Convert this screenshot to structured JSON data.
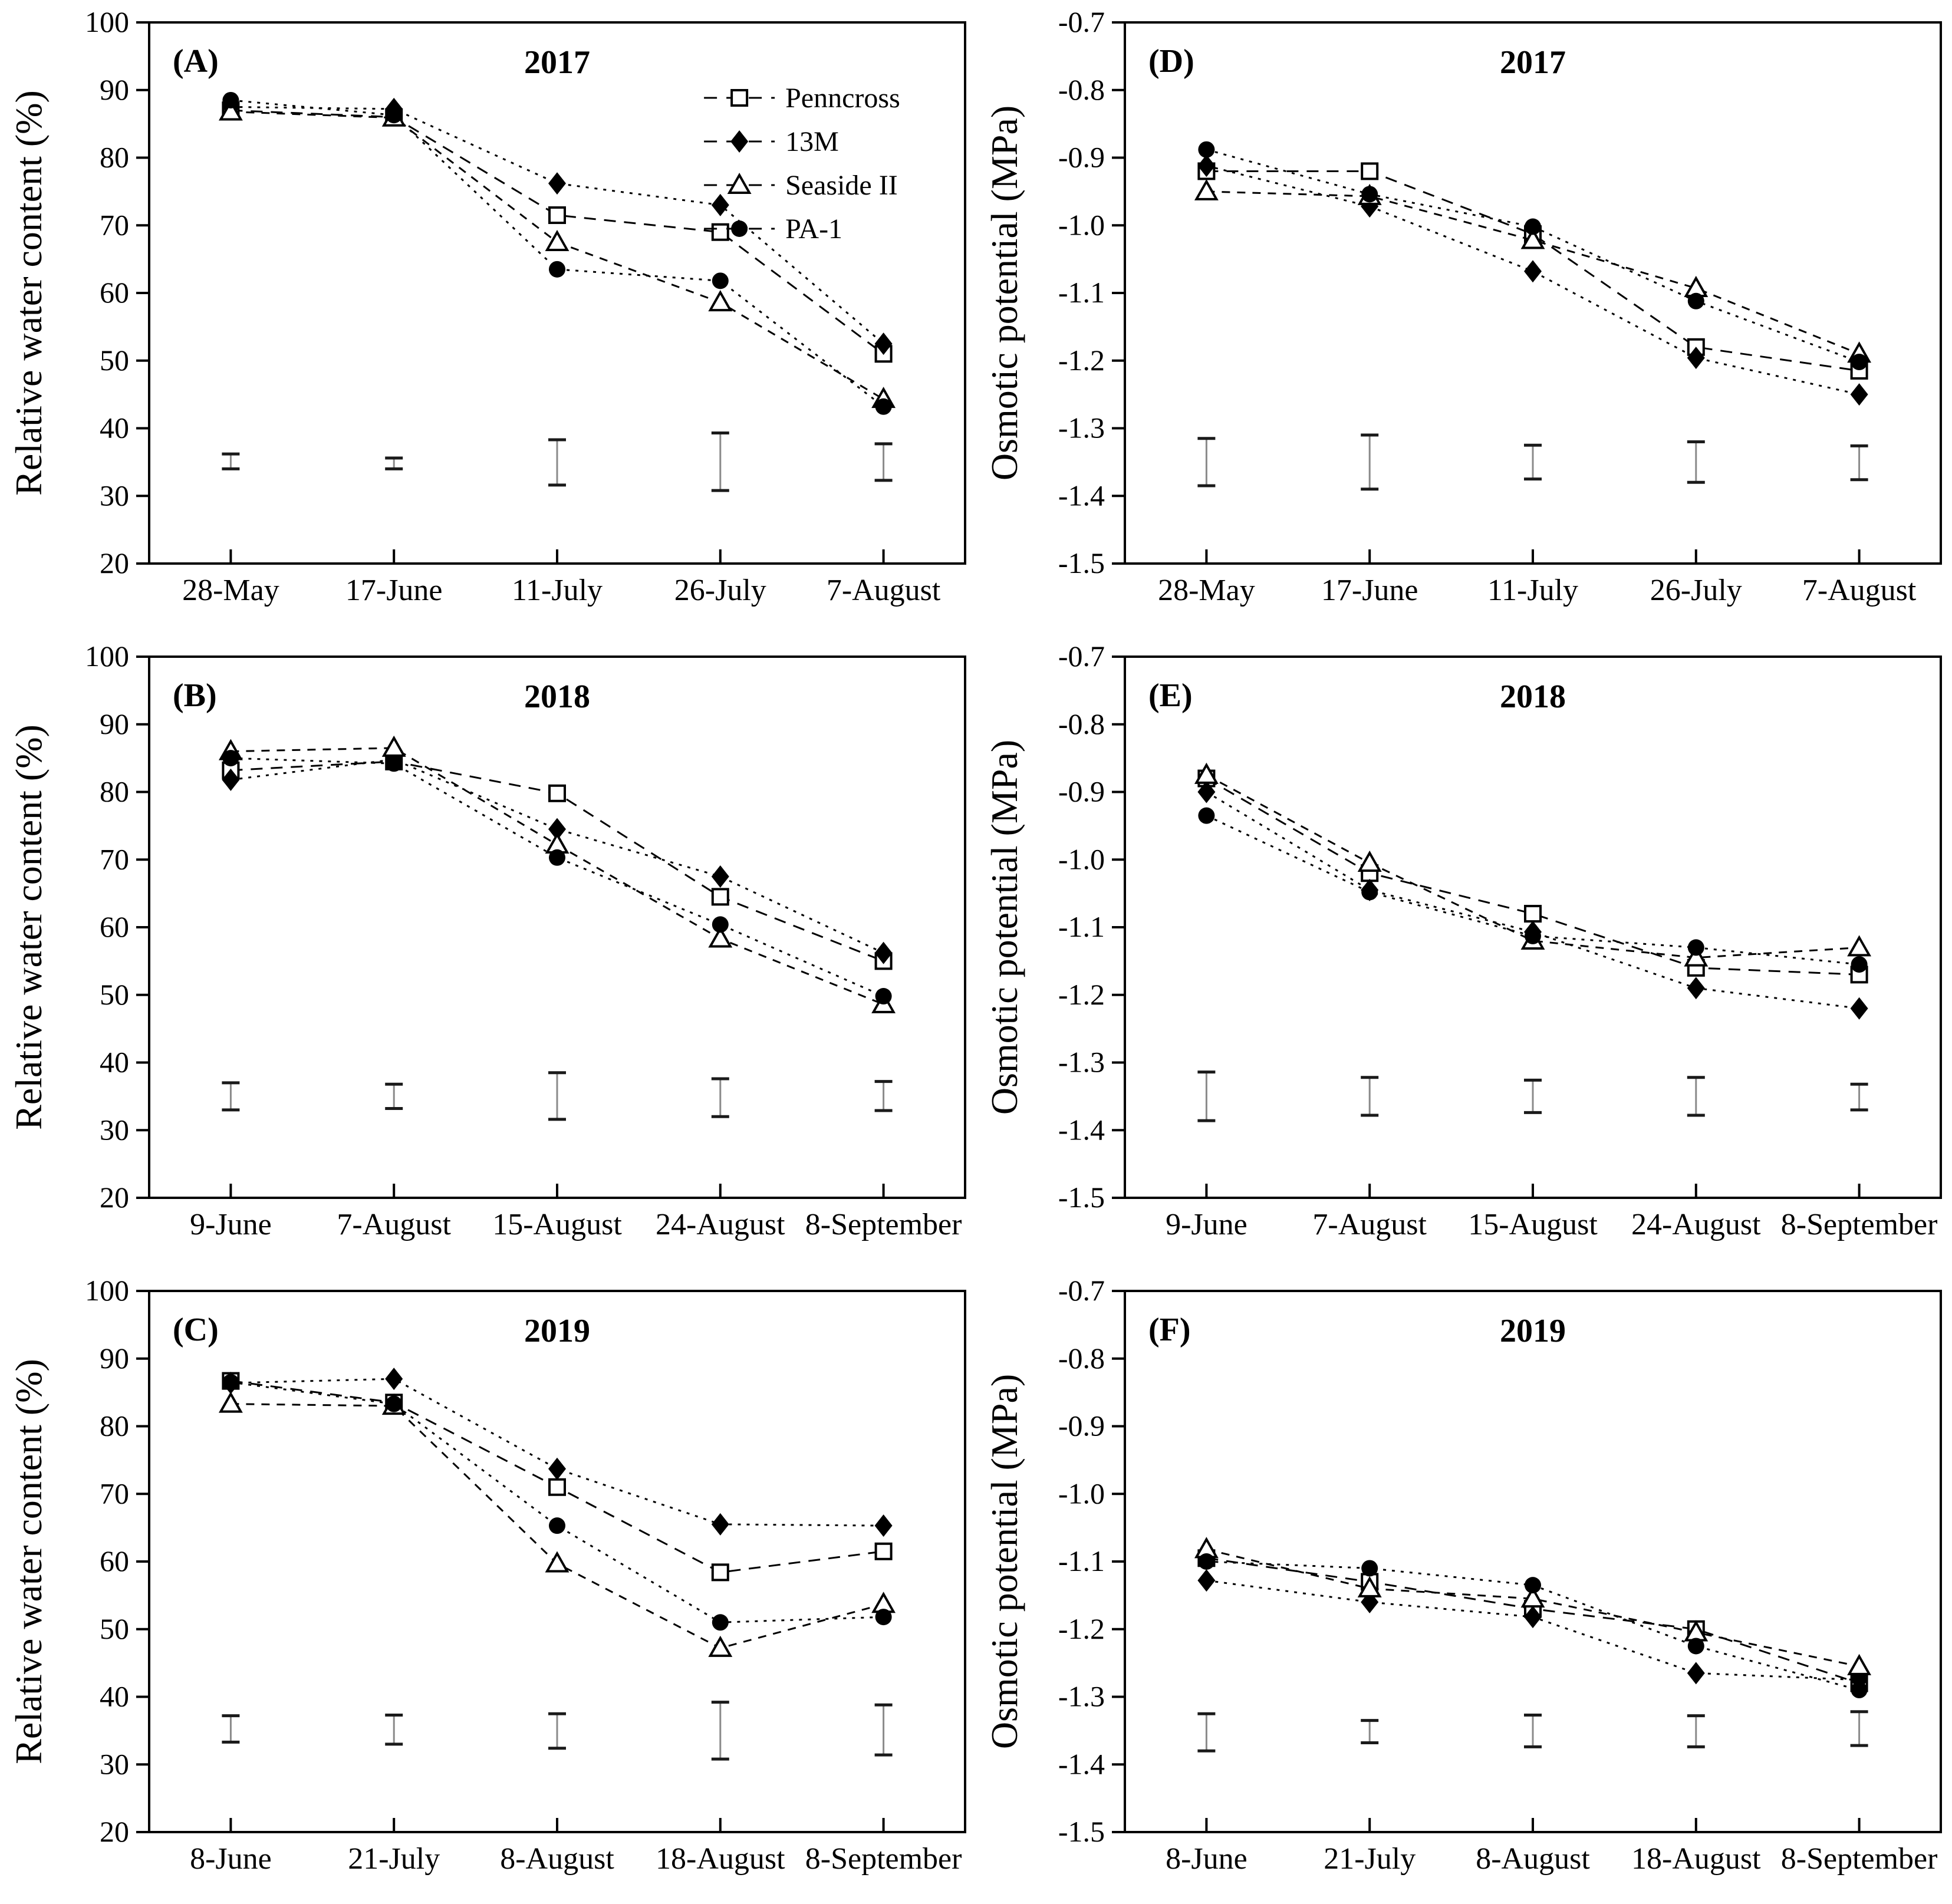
{
  "figure": {
    "background": "#ffffff",
    "foreground": "#000000",
    "error_bar_line_color": "#8a8a8a",
    "error_bar_cap_color": "#1a1a1a"
  },
  "legend": {
    "position": "top-right-of-panel-A",
    "items": [
      {
        "label": "Penncross",
        "marker": "square-open"
      },
      {
        "label": "13M",
        "marker": "diamond-filled"
      },
      {
        "label": "Seaside II",
        "marker": "triangle-open"
      },
      {
        "label": "PA-1",
        "marker": "circle-filled"
      }
    ]
  },
  "chart_data": [
    {
      "id": "A",
      "type": "line",
      "panel_label": "(A)",
      "title": "2017",
      "ylabel": "Relative water content (%)",
      "categories": [
        "28-May",
        "17-June",
        "11-July",
        "26-July",
        "7-August"
      ],
      "ylim": [
        20,
        100
      ],
      "yticks": [
        {
          "v": 100,
          "label": "100"
        },
        {
          "v": 90,
          "label": "90"
        },
        {
          "v": 80,
          "label": "80"
        },
        {
          "v": 70,
          "label": "70"
        },
        {
          "v": 60,
          "label": "60"
        },
        {
          "v": 50,
          "label": "50"
        },
        {
          "v": 40,
          "label": "40"
        },
        {
          "v": 30,
          "label": "30"
        },
        {
          "v": 20,
          "label": "20"
        }
      ],
      "show_legend": true,
      "series": [
        {
          "name": "Penncross",
          "marker": "square-open",
          "values": [
            87.0,
            86.0,
            71.5,
            69.0,
            51.0
          ]
        },
        {
          "name": "13M",
          "marker": "diamond-filled",
          "values": [
            87.5,
            87.2,
            76.2,
            73.0,
            52.5
          ]
        },
        {
          "name": "Seaside II",
          "marker": "triangle-open",
          "values": [
            86.8,
            85.9,
            67.5,
            58.6,
            44.3
          ]
        },
        {
          "name": "PA-1",
          "marker": "circle-filled",
          "values": [
            88.5,
            86.3,
            63.5,
            61.8,
            43.2
          ]
        }
      ],
      "error_bars": [
        [
          34.0,
          36.2
        ],
        [
          34.0,
          35.6
        ],
        [
          31.6,
          38.3
        ],
        [
          30.8,
          39.3
        ],
        [
          32.3,
          37.7
        ]
      ]
    },
    {
      "id": "D",
      "type": "line",
      "panel_label": "(D)",
      "title": "2017",
      "ylabel": "Osmotic potential (MPa)",
      "categories": [
        "28-May",
        "17-June",
        "11-July",
        "26-July",
        "7-August"
      ],
      "ylim": [
        -1.5,
        -0.7
      ],
      "yticks": [
        {
          "v": -0.7,
          "label": "-0.7"
        },
        {
          "v": -0.8,
          "label": "-0.8"
        },
        {
          "v": -0.9,
          "label": "-0.9"
        },
        {
          "v": -1.0,
          "label": "-1.0"
        },
        {
          "v": -1.1,
          "label": "-1.1"
        },
        {
          "v": -1.2,
          "label": "-1.2"
        },
        {
          "v": -1.3,
          "label": "-1.3"
        },
        {
          "v": -1.4,
          "label": "-1.4"
        },
        {
          "v": -1.5,
          "label": "-1.5"
        }
      ],
      "show_legend": false,
      "series": [
        {
          "name": "Penncross",
          "marker": "square-open",
          "values": [
            -0.92,
            -0.92,
            -1.013,
            -1.18,
            -1.215
          ]
        },
        {
          "name": "13M",
          "marker": "diamond-filled",
          "values": [
            -0.912,
            -0.972,
            -1.068,
            -1.196,
            -1.25
          ]
        },
        {
          "name": "Seaside II",
          "marker": "triangle-open",
          "values": [
            -0.95,
            -0.957,
            -1.022,
            -1.093,
            -1.19
          ]
        },
        {
          "name": "PA-1",
          "marker": "circle-filled",
          "values": [
            -0.888,
            -0.954,
            -1.002,
            -1.112,
            -1.202
          ]
        }
      ],
      "error_bars": [
        [
          -1.385,
          -1.315
        ],
        [
          -1.39,
          -1.31
        ],
        [
          -1.375,
          -1.325
        ],
        [
          -1.38,
          -1.32
        ],
        [
          -1.376,
          -1.326
        ]
      ]
    },
    {
      "id": "B",
      "type": "line",
      "panel_label": "(B)",
      "title": "2018",
      "ylabel": "Relative water content (%)",
      "categories": [
        "9-June",
        "7-August",
        "15-August",
        "24-August",
        "8-September"
      ],
      "ylim": [
        20,
        100
      ],
      "yticks": [
        {
          "v": 100,
          "label": "100"
        },
        {
          "v": 90,
          "label": "90"
        },
        {
          "v": 80,
          "label": "80"
        },
        {
          "v": 70,
          "label": "70"
        },
        {
          "v": 60,
          "label": "60"
        },
        {
          "v": 50,
          "label": "50"
        },
        {
          "v": 40,
          "label": "40"
        },
        {
          "v": 30,
          "label": "30"
        },
        {
          "v": 20,
          "label": "20"
        }
      ],
      "show_legend": false,
      "series": [
        {
          "name": "Penncross",
          "marker": "square-open",
          "values": [
            83.2,
            84.5,
            79.8,
            64.5,
            55.0
          ]
        },
        {
          "name": "13M",
          "marker": "diamond-filled",
          "values": [
            81.8,
            84.8,
            74.5,
            67.5,
            56.2
          ]
        },
        {
          "name": "Seaside II",
          "marker": "triangle-open",
          "values": [
            86.0,
            86.5,
            72.2,
            58.3,
            48.6
          ]
        },
        {
          "name": "PA-1",
          "marker": "circle-filled",
          "values": [
            85.0,
            84.2,
            70.3,
            60.4,
            49.8
          ]
        }
      ],
      "error_bars": [
        [
          33.0,
          37.0
        ],
        [
          33.2,
          36.8
        ],
        [
          31.6,
          38.5
        ],
        [
          32.0,
          37.6
        ],
        [
          32.9,
          37.2
        ]
      ]
    },
    {
      "id": "E",
      "type": "line",
      "panel_label": "(E)",
      "title": "2018",
      "ylabel": "Osmotic potential (MPa)",
      "categories": [
        "9-June",
        "7-August",
        "15-August",
        "24-August",
        "8-September"
      ],
      "ylim": [
        -1.5,
        -0.7
      ],
      "yticks": [
        {
          "v": -0.7,
          "label": "-0.7"
        },
        {
          "v": -0.8,
          "label": "-0.8"
        },
        {
          "v": -0.9,
          "label": "-0.9"
        },
        {
          "v": -1.0,
          "label": "-1.0"
        },
        {
          "v": -1.1,
          "label": "-1.1"
        },
        {
          "v": -1.2,
          "label": "-1.2"
        },
        {
          "v": -1.3,
          "label": "-1.3"
        },
        {
          "v": -1.4,
          "label": "-1.4"
        },
        {
          "v": -1.5,
          "label": "-1.5"
        }
      ],
      "show_legend": false,
      "series": [
        {
          "name": "Penncross",
          "marker": "square-open",
          "values": [
            -0.88,
            -1.02,
            -1.08,
            -1.16,
            -1.17
          ]
        },
        {
          "name": "13M",
          "marker": "diamond-filled",
          "values": [
            -0.9,
            -1.045,
            -1.107,
            -1.19,
            -1.22
          ]
        },
        {
          "name": "Seaside II",
          "marker": "triangle-open",
          "values": [
            -0.875,
            -1.005,
            -1.12,
            -1.145,
            -1.13
          ]
        },
        {
          "name": "PA-1",
          "marker": "circle-filled",
          "values": [
            -0.935,
            -1.048,
            -1.113,
            -1.13,
            -1.155
          ]
        }
      ],
      "error_bars": [
        [
          -1.386,
          -1.314
        ],
        [
          -1.378,
          -1.322
        ],
        [
          -1.374,
          -1.326
        ],
        [
          -1.378,
          -1.322
        ],
        [
          -1.37,
          -1.332
        ]
      ]
    },
    {
      "id": "C",
      "type": "line",
      "panel_label": "(C)",
      "title": "2019",
      "ylabel": "Relative water content (%)",
      "categories": [
        "8-June",
        "21-July",
        "8-August",
        "18-August",
        "8-September"
      ],
      "ylim": [
        20,
        100
      ],
      "yticks": [
        {
          "v": 100,
          "label": "100"
        },
        {
          "v": 90,
          "label": "90"
        },
        {
          "v": 80,
          "label": "80"
        },
        {
          "v": 70,
          "label": "70"
        },
        {
          "v": 60,
          "label": "60"
        },
        {
          "v": 50,
          "label": "50"
        },
        {
          "v": 40,
          "label": "40"
        },
        {
          "v": 30,
          "label": "30"
        },
        {
          "v": 20,
          "label": "20"
        }
      ],
      "show_legend": false,
      "series": [
        {
          "name": "Penncross",
          "marker": "square-open",
          "values": [
            86.7,
            83.5,
            71.0,
            58.4,
            61.5
          ]
        },
        {
          "name": "13M",
          "marker": "diamond-filled",
          "values": [
            86.4,
            87.0,
            73.7,
            65.5,
            65.3
          ]
        },
        {
          "name": "Seaside II",
          "marker": "triangle-open",
          "values": [
            83.3,
            83.0,
            59.7,
            47.2,
            53.7
          ]
        },
        {
          "name": "PA-1",
          "marker": "circle-filled",
          "values": [
            86.5,
            83.3,
            65.3,
            51.0,
            51.8
          ]
        }
      ],
      "error_bars": [
        [
          33.3,
          37.2
        ],
        [
          33.0,
          37.3
        ],
        [
          32.4,
          37.5
        ],
        [
          30.8,
          39.2
        ],
        [
          31.4,
          38.8
        ]
      ]
    },
    {
      "id": "F",
      "type": "line",
      "panel_label": "(F)",
      "title": "2019",
      "ylabel": "Osmotic potential (MPa)",
      "categories": [
        "8-June",
        "21-July",
        "8-August",
        "18-August",
        "8-September"
      ],
      "ylim": [
        -1.5,
        -0.7
      ],
      "yticks": [
        {
          "v": -0.7,
          "label": "-0.7"
        },
        {
          "v": -0.8,
          "label": "-0.8"
        },
        {
          "v": -0.9,
          "label": "-0.9"
        },
        {
          "v": -1.0,
          "label": "-1.0"
        },
        {
          "v": -1.1,
          "label": "-1.1"
        },
        {
          "v": -1.2,
          "label": "-1.2"
        },
        {
          "v": -1.3,
          "label": "-1.3"
        },
        {
          "v": -1.4,
          "label": "-1.4"
        },
        {
          "v": -1.5,
          "label": "-1.5"
        }
      ],
      "show_legend": false,
      "series": [
        {
          "name": "Penncross",
          "marker": "square-open",
          "values": [
            -1.095,
            -1.13,
            -1.17,
            -1.2,
            -1.28
          ]
        },
        {
          "name": "13M",
          "marker": "diamond-filled",
          "values": [
            -1.128,
            -1.16,
            -1.182,
            -1.265,
            -1.275
          ]
        },
        {
          "name": "Seaside II",
          "marker": "triangle-open",
          "values": [
            -1.082,
            -1.14,
            -1.155,
            -1.205,
            -1.255
          ]
        },
        {
          "name": "PA-1",
          "marker": "circle-filled",
          "values": [
            -1.1,
            -1.11,
            -1.135,
            -1.225,
            -1.29
          ]
        }
      ],
      "error_bars": [
        [
          -1.38,
          -1.325
        ],
        [
          -1.368,
          -1.335
        ],
        [
          -1.374,
          -1.327
        ],
        [
          -1.374,
          -1.328
        ],
        [
          -1.372,
          -1.322
        ]
      ]
    }
  ]
}
